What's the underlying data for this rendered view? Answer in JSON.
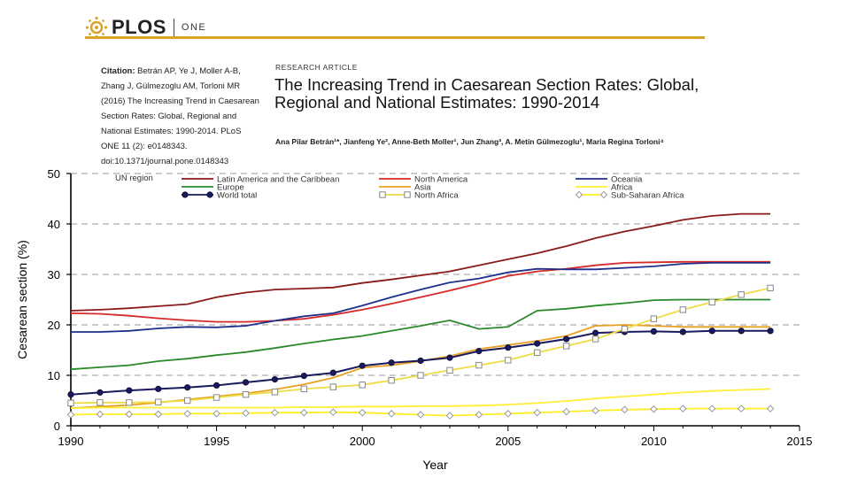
{
  "header": {
    "logo_text": "PLOS",
    "logo_sub": "ONE",
    "brand_color": "#d9a328"
  },
  "citation": {
    "label": "Citation:",
    "text": "Betrán AP, Ye J, Moller A-B, Zhang J, Gülmezoglu AM, Torloni MR (2016) The Increasing Trend in Caesarean Section Rates: Global, Regional and National Estimates: 1990-2014. PLoS ONE 11 (2): e0148343. doi:10.1371/journal.pone.0148343"
  },
  "article": {
    "type": "RESEARCH ARTICLE",
    "title": "The Increasing Trend in Caesarean Section Rates: Global, Regional and National Estimates: 1990-2014",
    "authors": "Ana Pilar Betrán¹*, Jianfeng Ye², Anne-Beth Moller¹, Jun Zhang³, A. Metin Gülmezoglu¹, Maria Regina Torloni⁴"
  },
  "chart_data": {
    "type": "line",
    "xlabel": "Year",
    "ylabel": "Cesarean section (%)",
    "xlim": [
      1990,
      2015
    ],
    "ylim": [
      0,
      50
    ],
    "x_ticks": [
      1990,
      1995,
      2000,
      2005,
      2010,
      2015
    ],
    "y_ticks": [
      0,
      10,
      20,
      30,
      40,
      50
    ],
    "legend_title": "UN region",
    "x": [
      1990,
      1991,
      1992,
      1993,
      1994,
      1995,
      1996,
      1997,
      1998,
      1999,
      2000,
      2001,
      2002,
      2003,
      2004,
      2005,
      2006,
      2007,
      2008,
      2009,
      2010,
      2011,
      2012,
      2013,
      2014
    ],
    "series": [
      {
        "name": "Latin America and the Caribbean",
        "color": "#8b1a1a",
        "marker": "none",
        "values": [
          22.8,
          23.0,
          23.3,
          23.7,
          24.1,
          25.5,
          26.4,
          27.0,
          27.2,
          27.4,
          28.3,
          29.0,
          29.8,
          30.6,
          31.8,
          33.0,
          34.2,
          35.6,
          37.2,
          38.5,
          39.6,
          40.8,
          41.6,
          42.0,
          42.0
        ]
      },
      {
        "name": "North America",
        "color": "#d42a2a",
        "marker": "none",
        "values": [
          22.3,
          22.2,
          21.8,
          21.3,
          20.9,
          20.6,
          20.6,
          20.8,
          21.2,
          22.0,
          23.0,
          24.2,
          25.5,
          26.8,
          28.2,
          29.7,
          30.6,
          31.1,
          31.8,
          32.3,
          32.4,
          32.5,
          32.5,
          32.5,
          32.5
        ]
      },
      {
        "name": "Oceania",
        "color": "#1f2f8a",
        "marker": "none",
        "values": [
          18.6,
          18.6,
          18.8,
          19.3,
          19.6,
          19.5,
          19.8,
          20.8,
          21.7,
          22.3,
          23.8,
          25.5,
          27.0,
          28.4,
          29.2,
          30.4,
          31.1,
          31.0,
          31.0,
          31.3,
          31.6,
          32.1,
          32.3,
          32.3,
          32.3
        ]
      },
      {
        "name": "Europe",
        "color": "#2a8a2a",
        "marker": "none",
        "values": [
          11.2,
          11.6,
          12.0,
          12.8,
          13.3,
          14.0,
          14.6,
          15.4,
          16.3,
          17.1,
          17.8,
          18.8,
          19.8,
          20.9,
          19.2,
          19.6,
          22.8,
          23.2,
          23.8,
          24.3,
          24.9,
          25.0,
          25.0,
          25.0,
          25.0
        ]
      },
      {
        "name": "Asia",
        "color": "#e8a020",
        "marker": "none",
        "values": [
          3.5,
          3.8,
          4.1,
          4.6,
          5.2,
          5.8,
          6.4,
          7.2,
          8.2,
          9.5,
          11.5,
          12.0,
          12.8,
          13.8,
          15.2,
          16.0,
          16.8,
          17.8,
          19.8,
          20.0,
          19.8,
          19.6,
          19.6,
          19.6,
          19.6
        ]
      },
      {
        "name": "Africa",
        "color": "#ffee33",
        "marker": "none",
        "values": [
          3.5,
          3.6,
          3.6,
          3.6,
          3.6,
          3.6,
          3.6,
          3.6,
          3.7,
          3.7,
          3.8,
          3.8,
          3.9,
          3.9,
          4.0,
          4.2,
          4.5,
          4.9,
          5.4,
          5.8,
          6.2,
          6.6,
          6.9,
          7.1,
          7.3
        ]
      },
      {
        "name": "World total",
        "color": "#1a1a5e",
        "marker": "circle",
        "values": [
          6.2,
          6.6,
          7.0,
          7.3,
          7.6,
          8.0,
          8.6,
          9.2,
          9.9,
          10.5,
          11.9,
          12.5,
          12.9,
          13.5,
          14.8,
          15.5,
          16.3,
          17.2,
          18.4,
          18.6,
          18.7,
          18.6,
          18.8,
          18.8,
          18.8
        ]
      },
      {
        "name": "North Africa",
        "color": "#eedd44",
        "marker": "square",
        "values": [
          4.5,
          4.6,
          4.6,
          4.7,
          5.0,
          5.6,
          6.2,
          6.7,
          7.3,
          7.7,
          8.1,
          9.0,
          10.0,
          11.0,
          12.0,
          13.0,
          14.5,
          15.8,
          17.2,
          19.2,
          21.2,
          23.0,
          24.5,
          26.0,
          27.3
        ]
      },
      {
        "name": "Sub-Saharan Africa",
        "color": "#ffee22",
        "marker": "diamond",
        "values": [
          2.2,
          2.3,
          2.3,
          2.3,
          2.4,
          2.4,
          2.5,
          2.6,
          2.6,
          2.7,
          2.6,
          2.4,
          2.2,
          2.0,
          2.2,
          2.4,
          2.6,
          2.8,
          3.0,
          3.2,
          3.3,
          3.4,
          3.4,
          3.4,
          3.4
        ]
      }
    ]
  }
}
